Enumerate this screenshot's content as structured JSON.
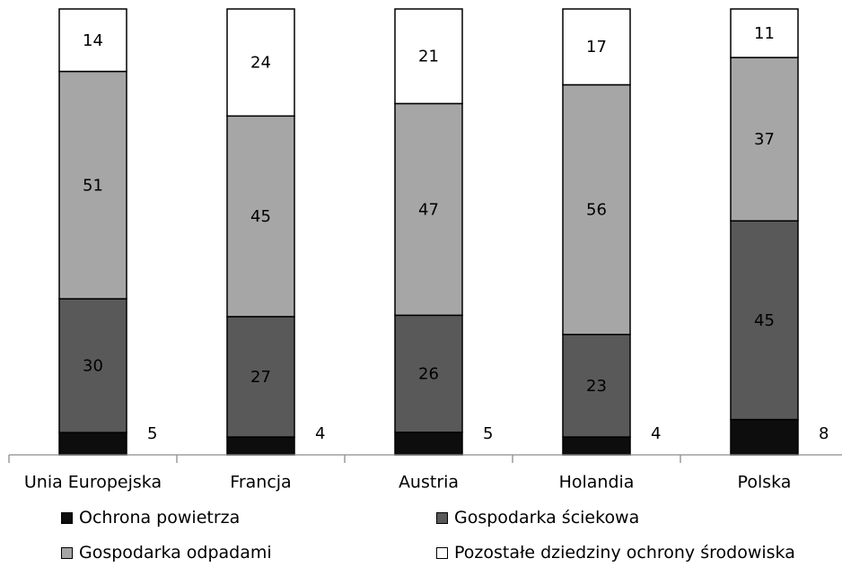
{
  "chart_data": {
    "type": "bar",
    "stacked": true,
    "normalized_to_percent": true,
    "categories": [
      "Unia Europejska",
      "Francja",
      "Austria",
      "Holandia",
      "Polska"
    ],
    "series": [
      {
        "name": "Ochrona powietrza",
        "values": [
          5,
          4,
          5,
          4,
          8
        ],
        "color": "#0d0d0d",
        "label_outside": true
      },
      {
        "name": "Gospodarka ściekowa",
        "values": [
          30,
          27,
          26,
          23,
          45
        ],
        "color": "#595959"
      },
      {
        "name": "Gospodarka odpadami",
        "values": [
          51,
          45,
          47,
          56,
          37
        ],
        "color": "#a6a6a6"
      },
      {
        "name": "Pozostałe dziedziny ochrony środowiska",
        "values": [
          14,
          24,
          21,
          17,
          11
        ],
        "color": "#ffffff"
      }
    ],
    "ylim": [
      0,
      100
    ],
    "title": "",
    "xlabel": "",
    "ylabel": "",
    "grid": false,
    "legend_position": "bottom"
  }
}
